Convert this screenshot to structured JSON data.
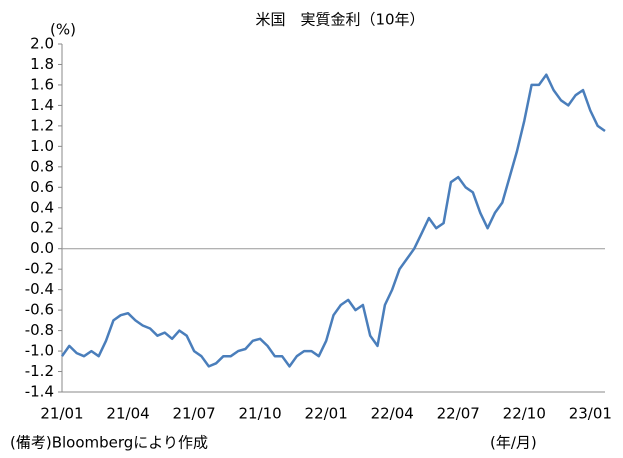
{
  "chart_data": {
    "type": "line",
    "title": "米国　実質金利（10年）",
    "y_unit_label": "(%)",
    "x_unit_label": "(年/月)",
    "source_note": "(備考)Bloombergにより作成",
    "categories": [
      "21/01",
      null,
      null,
      null,
      null,
      null,
      null,
      null,
      null,
      "21/04",
      null,
      null,
      null,
      null,
      null,
      null,
      null,
      null,
      "21/07",
      null,
      null,
      null,
      null,
      null,
      null,
      null,
      null,
      "21/10",
      null,
      null,
      null,
      null,
      null,
      null,
      null,
      null,
      "22/01",
      null,
      null,
      null,
      null,
      null,
      null,
      null,
      null,
      "22/04",
      null,
      null,
      null,
      null,
      null,
      null,
      null,
      null,
      "22/07",
      null,
      null,
      null,
      null,
      null,
      null,
      null,
      null,
      "22/10",
      null,
      null,
      null,
      null,
      null,
      null,
      null,
      null,
      "23/01",
      null,
      null
    ],
    "series": [
      {
        "name": "実質金利",
        "color": "#4a7ebb",
        "values": [
          -1.05,
          -0.95,
          -1.02,
          -1.05,
          -1.0,
          -1.05,
          -0.9,
          -0.7,
          -0.65,
          -0.63,
          -0.7,
          -0.75,
          -0.78,
          -0.85,
          -0.82,
          -0.88,
          -0.8,
          -0.85,
          -1.0,
          -1.05,
          -1.15,
          -1.12,
          -1.05,
          -1.05,
          -1.0,
          -0.98,
          -0.9,
          -0.88,
          -0.95,
          -1.05,
          -1.05,
          -1.15,
          -1.05,
          -1.0,
          -1.0,
          -1.05,
          -0.9,
          -0.65,
          -0.55,
          -0.5,
          -0.6,
          -0.55,
          -0.85,
          -0.95,
          -0.55,
          -0.4,
          -0.2,
          -0.1,
          0.0,
          0.15,
          0.3,
          0.2,
          0.25,
          0.65,
          0.7,
          0.6,
          0.55,
          0.35,
          0.2,
          0.35,
          0.45,
          0.7,
          0.95,
          1.25,
          1.6,
          1.6,
          1.7,
          1.55,
          1.45,
          1.4,
          1.5,
          1.55,
          1.35,
          1.2,
          1.15
        ]
      }
    ],
    "ylim": [
      -1.4,
      2.0
    ],
    "yticks": [
      {
        "value": 2.0,
        "label": "2.0"
      },
      {
        "value": 1.8,
        "label": "1.8"
      },
      {
        "value": 1.6,
        "label": "1.6"
      },
      {
        "value": 1.4,
        "label": "1.4"
      },
      {
        "value": 1.2,
        "label": "1.2"
      },
      {
        "value": 1.0,
        "label": "1.0"
      },
      {
        "value": 0.8,
        "label": "0.8"
      },
      {
        "value": 0.6,
        "label": "0.6"
      },
      {
        "value": 0.4,
        "label": "0.4"
      },
      {
        "value": 0.2,
        "label": "0.2"
      },
      {
        "value": 0.0,
        "label": "0.0"
      },
      {
        "value": -0.2,
        "label": "-0.2"
      },
      {
        "value": -0.4,
        "label": "-0.4"
      },
      {
        "value": -0.6,
        "label": "-0.6"
      },
      {
        "value": -0.8,
        "label": "-0.8"
      },
      {
        "value": -1.0,
        "label": "-1.0"
      },
      {
        "value": -1.2,
        "label": "-1.2"
      },
      {
        "value": -1.4,
        "label": "-1.4"
      }
    ],
    "zero_line": true
  }
}
